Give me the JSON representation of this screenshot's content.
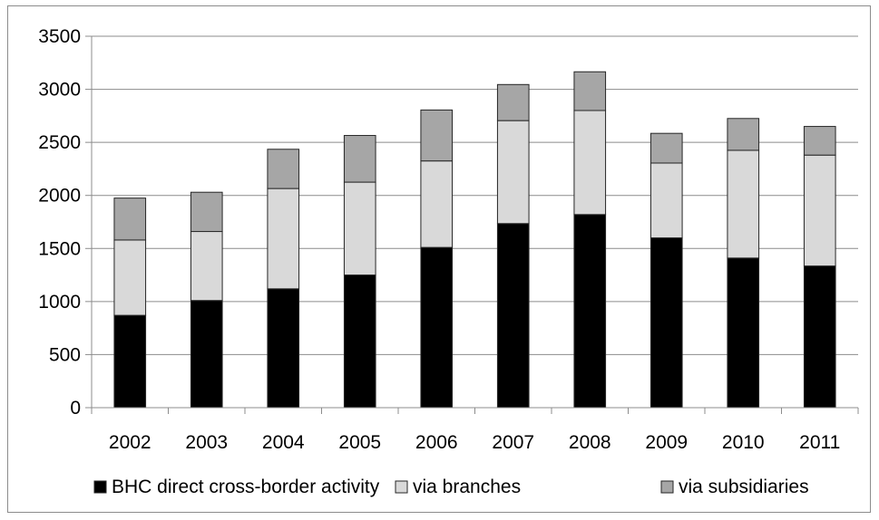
{
  "chart_data": {
    "type": "bar",
    "stacked": true,
    "categories": [
      "2002",
      "2003",
      "2004",
      "2005",
      "2006",
      "2007",
      "2008",
      "2009",
      "2010",
      "2011"
    ],
    "series": [
      {
        "name": "BHC direct cross-border activity",
        "color": "#000000",
        "values": [
          870,
          1010,
          1120,
          1250,
          1510,
          1735,
          1820,
          1600,
          1410,
          1335
        ]
      },
      {
        "name": "via branches",
        "color": "#d9d9d9",
        "values": [
          710,
          650,
          945,
          875,
          815,
          970,
          980,
          705,
          1015,
          1045
        ]
      },
      {
        "name": "via subsidiaries",
        "color": "#a6a6a6",
        "values": [
          395,
          370,
          370,
          440,
          480,
          340,
          365,
          280,
          300,
          270
        ]
      }
    ],
    "title": "",
    "xlabel": "",
    "ylabel": "",
    "ylim": [
      0,
      3500
    ],
    "yticks": [
      0,
      500,
      1000,
      1500,
      2000,
      2500,
      3000,
      3500
    ],
    "grid": true,
    "legend": "bottom"
  }
}
